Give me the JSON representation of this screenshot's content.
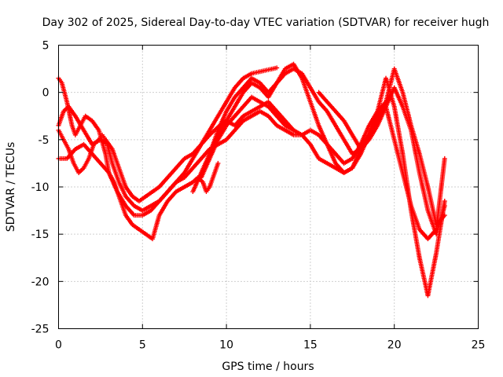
{
  "chart_data": {
    "type": "scatter",
    "title": "Day 302 of 2025, Sidereal Day-to-day VTEC variation (SDTVAR) for receiver hugh",
    "xlabel": "GPS time / hours",
    "ylabel": "SDTVAR / TECUs",
    "xlim": [
      0,
      25
    ],
    "ylim": [
      -25,
      5
    ],
    "xticks": [
      0,
      5,
      10,
      15,
      20,
      25
    ],
    "yticks": [
      -25,
      -20,
      -15,
      -10,
      -5,
      0,
      5
    ],
    "grid": true,
    "marker": "plus",
    "color": "#ff0000",
    "series": [
      {
        "x": [
          0.0,
          0.3,
          0.6,
          1.0,
          1.5,
          2.0,
          2.5,
          2.9,
          3.2,
          3.6,
          4.0,
          4.5,
          5.0,
          5.5,
          6.0,
          6.5,
          7.0,
          7.5,
          8.0,
          8.5,
          9.0,
          9.5,
          10.0,
          10.5,
          11.0,
          11.5,
          12.0,
          12.5,
          13.0
        ],
        "y": [
          -3.5,
          -2.0,
          -1.5,
          -2.5,
          -4.0,
          -5.5,
          -5.0,
          -5.5,
          -7.5,
          -9.5,
          -11.0,
          -12.0,
          -12.5,
          -12.0,
          -11.5,
          -10.5,
          -9.5,
          -8.5,
          -7.0,
          -5.5,
          -4.0,
          -2.5,
          -1.0,
          0.5,
          1.5,
          2.0,
          2.2,
          2.4,
          2.6
        ]
      },
      {
        "x": [
          0.0,
          0.2,
          0.5,
          0.8,
          1.0,
          1.3,
          1.6,
          2.0,
          2.4,
          2.8,
          3.0,
          3.3,
          3.7,
          4.0,
          4.4,
          4.8,
          5.2,
          5.6,
          6.0,
          6.5,
          7.0,
          7.5,
          8.0,
          8.3,
          8.6,
          8.8,
          9.0,
          9.3,
          9.5
        ],
        "y": [
          1.5,
          1.0,
          -1.0,
          -3.5,
          -4.5,
          -3.5,
          -2.5,
          -3.0,
          -4.0,
          -6.5,
          -8.5,
          -9.5,
          -11.5,
          -13.0,
          -14.0,
          -14.5,
          -15.0,
          -15.5,
          -13.0,
          -11.5,
          -10.5,
          -10.0,
          -9.5,
          -9.0,
          -9.5,
          -10.5,
          -10.0,
          -8.5,
          -7.5
        ]
      },
      {
        "x": [
          0.0,
          0.3,
          0.6,
          0.9,
          1.2,
          1.5,
          1.8,
          2.1,
          2.4,
          2.6,
          2.8,
          3.2,
          3.6,
          4.0,
          4.4,
          4.8,
          5.2,
          5.6,
          6.0,
          6.5,
          7.0,
          7.5,
          8.0,
          8.5,
          9.0,
          9.3,
          9.6,
          10.0,
          10.5,
          11.0,
          11.5,
          12.0,
          12.5,
          13.0,
          13.5,
          14.0
        ],
        "y": [
          -4.0,
          -5.0,
          -6.0,
          -7.5,
          -8.5,
          -8.0,
          -7.0,
          -5.5,
          -5.0,
          -4.5,
          -5.0,
          -6.0,
          -8.0,
          -10.0,
          -11.0,
          -11.5,
          -11.0,
          -10.5,
          -10.0,
          -9.0,
          -8.0,
          -7.0,
          -6.5,
          -5.5,
          -4.5,
          -4.0,
          -3.5,
          -3.0,
          -3.5,
          -2.5,
          -2.0,
          -1.5,
          -1.0,
          -2.0,
          -3.0,
          -4.0
        ]
      },
      {
        "x": [
          0.0,
          0.5,
          1.0,
          1.5,
          2.0,
          2.5,
          3.0,
          3.5,
          4.0,
          4.5,
          5.0,
          5.5,
          6.0,
          6.5,
          7.0,
          7.5,
          8.0,
          8.5,
          9.0,
          9.5,
          10.0,
          10.5,
          11.0,
          11.5,
          12.0,
          12.5,
          13.0,
          13.5,
          14.0,
          14.5,
          15.0,
          15.5,
          16.0,
          16.5,
          17.0,
          17.5,
          18.0,
          18.5,
          19.0,
          19.5
        ],
        "y": [
          -7.0,
          -7.0,
          -6.0,
          -5.5,
          -6.5,
          -7.5,
          -8.5,
          -10.5,
          -12.0,
          -13.0,
          -13.0,
          -12.5,
          -11.5,
          -10.5,
          -9.5,
          -9.0,
          -8.0,
          -7.0,
          -6.0,
          -5.5,
          -5.0,
          -4.0,
          -3.0,
          -2.5,
          -2.0,
          -2.5,
          -3.5,
          -4.0,
          -4.5,
          -4.5,
          -4.0,
          -4.5,
          -5.5,
          -6.5,
          -7.5,
          -7.0,
          -5.5,
          -3.5,
          -2.0,
          -1.0
        ]
      },
      {
        "x": [
          8.5,
          9.0,
          9.5,
          10.0,
          10.5,
          11.0,
          11.5,
          12.0,
          12.5,
          13.0,
          13.5,
          14.0,
          14.5,
          15.0,
          15.5,
          16.0,
          16.5,
          17.0,
          17.5,
          18.0,
          18.5,
          19.0,
          19.5,
          20.0,
          20.5,
          21.0,
          21.5,
          22.0,
          22.5,
          23.0
        ],
        "y": [
          -9.0,
          -7.0,
          -5.0,
          -3.5,
          -2.5,
          -1.5,
          -0.5,
          -1.0,
          -1.5,
          -2.5,
          -3.5,
          -4.0,
          -4.5,
          -5.5,
          -7.0,
          -7.5,
          -8.0,
          -8.5,
          -8.0,
          -6.0,
          -4.5,
          -2.5,
          -1.5,
          -5.0,
          -8.5,
          -12.0,
          -14.5,
          -15.5,
          -14.5,
          -7.0
        ]
      },
      {
        "x": [
          8.0,
          8.5,
          9.0,
          9.5,
          10.0,
          10.5,
          11.0,
          11.5,
          12.0,
          12.5,
          13.0,
          13.5,
          14.0,
          14.5,
          15.0,
          15.5,
          16.0,
          16.5,
          17.0,
          17.5,
          18.0,
          18.5,
          19.0,
          19.5,
          20.0,
          20.5,
          21.0,
          21.5,
          22.0,
          22.5,
          23.0
        ],
        "y": [
          -10.5,
          -8.5,
          -6.5,
          -4.5,
          -3.0,
          -1.5,
          0.0,
          1.0,
          0.5,
          -0.5,
          1.0,
          2.5,
          3.0,
          1.5,
          -1.0,
          -3.5,
          -5.5,
          -7.5,
          -8.5,
          -8.0,
          -6.5,
          -4.5,
          -2.0,
          1.5,
          -1.5,
          -6.5,
          -12.5,
          -17.5,
          -21.5,
          -17.0,
          -11.5
        ]
      },
      {
        "x": [
          9.0,
          9.5,
          10.0,
          10.5,
          11.0,
          11.5,
          12.0,
          12.5,
          13.0,
          13.5,
          14.0,
          14.5,
          15.0,
          15.5,
          16.0,
          16.5,
          17.0,
          17.5,
          18.0,
          18.5,
          19.0,
          19.5,
          20.0,
          20.5,
          21.0,
          21.5,
          22.0,
          22.5,
          23.0
        ],
        "y": [
          -6.5,
          -4.0,
          -2.0,
          -0.5,
          0.5,
          1.5,
          1.0,
          0.0,
          1.0,
          2.0,
          2.5,
          2.0,
          0.5,
          -1.0,
          -2.0,
          -3.5,
          -5.0,
          -6.5,
          -6.0,
          -4.5,
          -3.0,
          -1.0,
          2.5,
          0.0,
          -3.5,
          -6.5,
          -10.0,
          -14.0,
          -13.0
        ]
      },
      {
        "x": [
          15.5,
          16.0,
          16.5,
          17.0,
          17.5,
          18.0,
          18.5,
          19.0,
          19.5,
          20.0,
          20.5,
          21.0,
          21.5,
          22.0,
          22.5,
          23.0
        ],
        "y": [
          0.0,
          -1.0,
          -2.0,
          -3.0,
          -4.5,
          -6.0,
          -5.0,
          -3.5,
          -1.5,
          0.5,
          -1.5,
          -4.0,
          -8.5,
          -12.5,
          -15.0,
          -12.0
        ]
      }
    ]
  }
}
